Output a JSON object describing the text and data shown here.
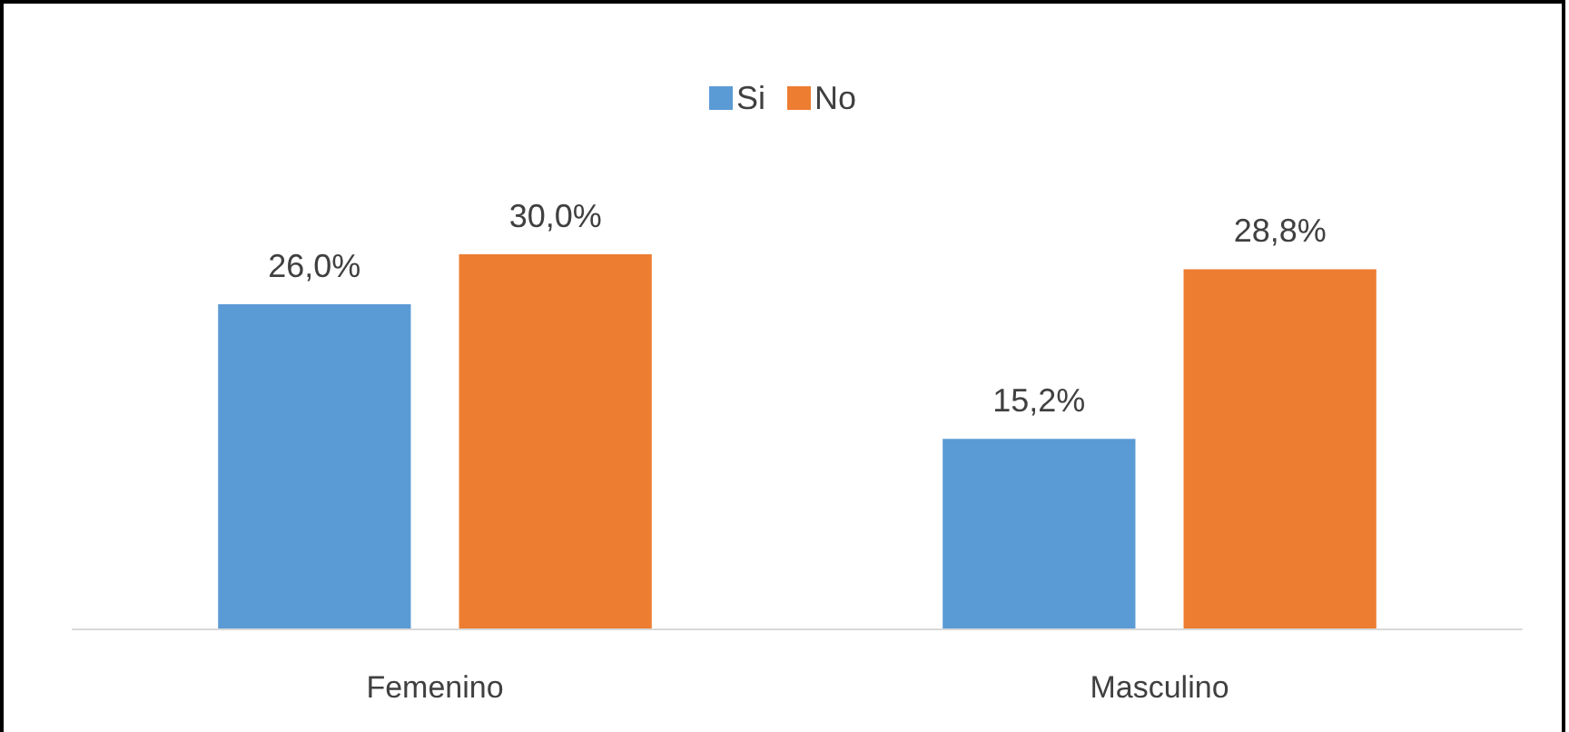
{
  "chart_data": {
    "type": "bar",
    "categories": [
      "Femenino",
      "Masculino"
    ],
    "series": [
      {
        "name": "Si",
        "color": "#5b9bd5",
        "values": [
          26.0,
          15.2
        ],
        "value_labels": [
          "26,0%",
          "15,2%"
        ]
      },
      {
        "name": "No",
        "color": "#ed7d31",
        "values": [
          30.0,
          28.8
        ],
        "value_labels": [
          "30,0%",
          "28,8%"
        ]
      }
    ],
    "legend": "top"
  }
}
